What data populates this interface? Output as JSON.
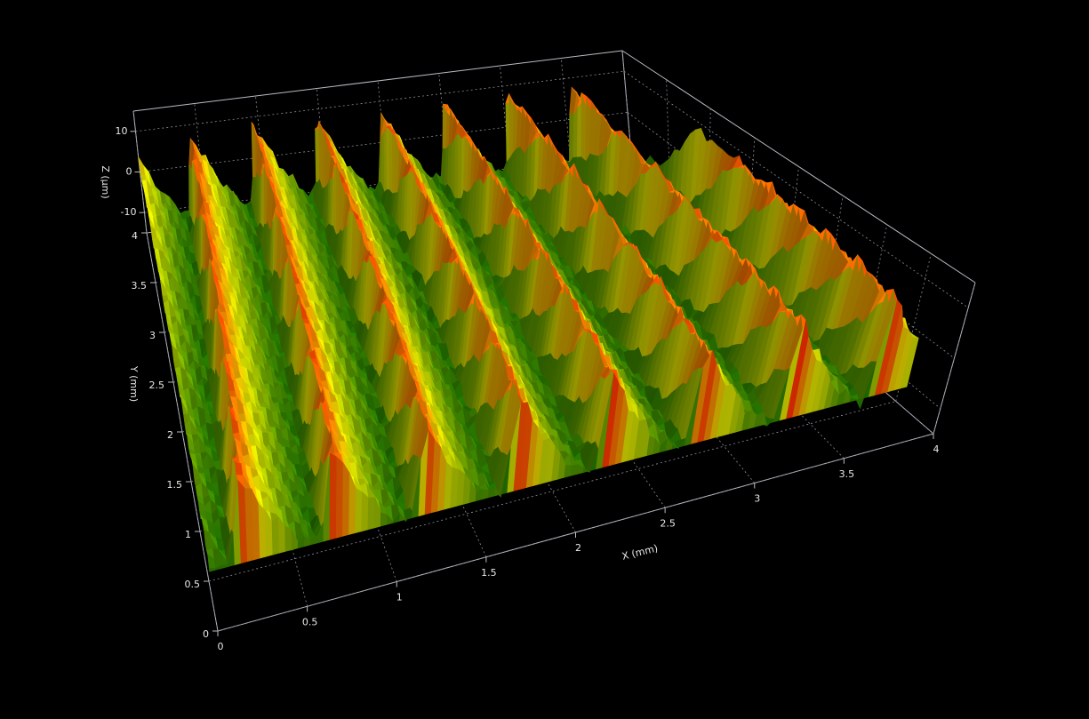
{
  "chart_data": {
    "type": "surface3d",
    "xlabel": "X (mm)",
    "ylabel": "Y (mm)",
    "zlabel": "Z (µm)",
    "xlim": [
      0,
      4
    ],
    "ylim": [
      0,
      4
    ],
    "zlim": [
      -15,
      15
    ],
    "xticks": [
      0,
      0.5,
      1,
      1.5,
      2,
      2.5,
      3,
      3.5,
      4
    ],
    "yticks": [
      0,
      0.5,
      1,
      1.5,
      2,
      2.5,
      3,
      3.5,
      4
    ],
    "zticks": [
      -10,
      0,
      10
    ],
    "grid": true
  }
}
